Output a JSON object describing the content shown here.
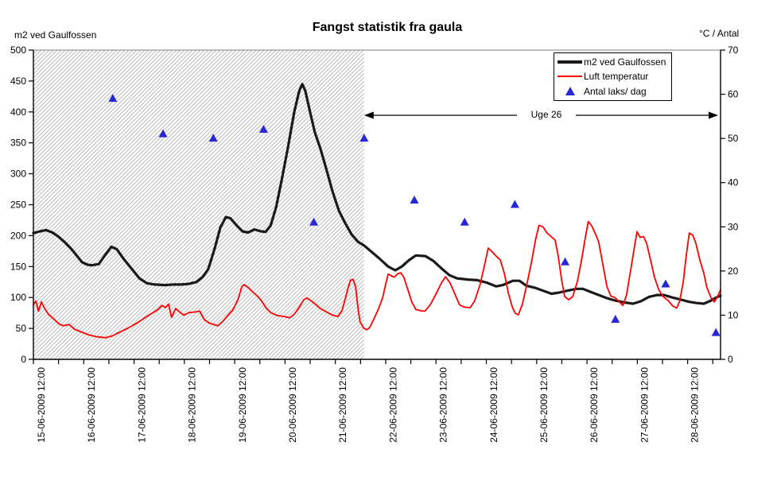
{
  "title": "Fangst statistik fra gaula",
  "left_axis": {
    "title": "m2 ved Gaulfossen",
    "min": 0,
    "max": 500,
    "ticks": [
      "0",
      "50",
      "100",
      "150",
      "200",
      "250",
      "300",
      "350",
      "400",
      "450",
      "500"
    ]
  },
  "right_axis": {
    "title": "°C / Antal",
    "min": 0,
    "max": 70,
    "ticks": [
      "0",
      "10",
      "20",
      "30",
      "40",
      "50",
      "60",
      "70"
    ]
  },
  "x_axis": {
    "labels": [
      "15-06-2009 12:00",
      "16-06-2009 12:00",
      "17-06-2009 12:00",
      "18-06-2009 12:00",
      "19-06-2009 12:00",
      "20-06-2009 12:00",
      "21-06-2009 12:00",
      "22-06-2009 12:00",
      "23-06-2009 12:00",
      "24-06-2009 12:00",
      "25-06-2009 12:00",
      "26-06-2009 12:00",
      "27-06-2009 12:00",
      "28-06-2009 12:00"
    ]
  },
  "legend": {
    "items": [
      {
        "label": "m2 ved Gaulfossen",
        "type": "line-thick",
        "color": "#1a1a1a"
      },
      {
        "label": "Luft temperatur",
        "type": "line",
        "color": "#ff0000"
      },
      {
        "label": "Antal laks/ dag",
        "type": "triangle",
        "color": "#2828d2"
      }
    ]
  },
  "annotation": {
    "label": "Uge 26",
    "spans_days": [
      6.5,
      13.59
    ]
  },
  "shaded_region": {
    "from_day": -0.08,
    "to_day": 6.5,
    "hatch_color": "#b9b9b9"
  },
  "chart_data": {
    "type": "line",
    "title": "Fangst statistik fra gaula",
    "x_unit": "days, 0 = 15-06-2009 12:00 (axis category labels at integer days)",
    "x_range": [
      -0.08,
      13.59
    ],
    "left_ylim": [
      0,
      500
    ],
    "right_ylim": [
      0,
      70
    ],
    "grid": false,
    "legend_position": "top-right-inside",
    "series": [
      {
        "name": "m2 ved Gaulfossen",
        "axis": "left",
        "type": "line",
        "color": "#1a1a1a",
        "points": [
          [
            -0.08,
            204
          ],
          [
            0.05,
            207
          ],
          [
            0.17,
            209
          ],
          [
            0.3,
            205
          ],
          [
            0.41,
            199
          ],
          [
            0.55,
            189
          ],
          [
            0.68,
            178
          ],
          [
            0.8,
            166
          ],
          [
            0.89,
            157
          ],
          [
            1.0,
            153
          ],
          [
            1.08,
            152
          ],
          [
            1.22,
            154
          ],
          [
            1.36,
            170
          ],
          [
            1.47,
            182
          ],
          [
            1.58,
            178
          ],
          [
            1.71,
            163
          ],
          [
            1.87,
            147
          ],
          [
            2.03,
            131
          ],
          [
            2.18,
            123
          ],
          [
            2.34,
            121
          ],
          [
            2.53,
            120
          ],
          [
            2.71,
            121
          ],
          [
            2.86,
            121
          ],
          [
            3.01,
            122
          ],
          [
            3.16,
            125
          ],
          [
            3.29,
            133
          ],
          [
            3.4,
            146
          ],
          [
            3.53,
            180
          ],
          [
            3.64,
            213
          ],
          [
            3.75,
            230
          ],
          [
            3.84,
            228
          ],
          [
            3.96,
            217
          ],
          [
            4.08,
            207
          ],
          [
            4.19,
            205
          ],
          [
            4.32,
            210
          ],
          [
            4.45,
            207
          ],
          [
            4.54,
            206
          ],
          [
            4.64,
            216
          ],
          [
            4.75,
            246
          ],
          [
            4.86,
            290
          ],
          [
            4.98,
            340
          ],
          [
            5.11,
            400
          ],
          [
            5.21,
            434
          ],
          [
            5.27,
            445
          ],
          [
            5.33,
            434
          ],
          [
            5.43,
            398
          ],
          [
            5.52,
            367
          ],
          [
            5.63,
            341
          ],
          [
            5.74,
            310
          ],
          [
            5.87,
            272
          ],
          [
            6.0,
            240
          ],
          [
            6.12,
            221
          ],
          [
            6.25,
            202
          ],
          [
            6.38,
            190
          ],
          [
            6.5,
            184
          ],
          [
            6.66,
            173
          ],
          [
            6.82,
            162
          ],
          [
            6.98,
            150
          ],
          [
            7.12,
            144
          ],
          [
            7.25,
            150
          ],
          [
            7.39,
            160
          ],
          [
            7.53,
            168
          ],
          [
            7.72,
            167
          ],
          [
            7.88,
            159
          ],
          [
            8.04,
            147
          ],
          [
            8.2,
            136
          ],
          [
            8.35,
            131
          ],
          [
            8.56,
            129
          ],
          [
            8.75,
            128
          ],
          [
            8.94,
            124
          ],
          [
            9.13,
            118
          ],
          [
            9.26,
            120
          ],
          [
            9.46,
            127
          ],
          [
            9.59,
            127
          ],
          [
            9.73,
            119
          ],
          [
            9.89,
            116
          ],
          [
            10.06,
            111
          ],
          [
            10.23,
            106
          ],
          [
            10.38,
            108
          ],
          [
            10.55,
            111
          ],
          [
            10.73,
            114
          ],
          [
            10.85,
            114
          ],
          [
            11.01,
            109
          ],
          [
            11.17,
            104
          ],
          [
            11.33,
            99
          ],
          [
            11.5,
            95
          ],
          [
            11.68,
            92
          ],
          [
            11.85,
            90
          ],
          [
            12.01,
            94
          ],
          [
            12.17,
            101
          ],
          [
            12.33,
            104
          ],
          [
            12.47,
            104
          ],
          [
            12.63,
            100
          ],
          [
            12.78,
            97
          ],
          [
            12.96,
            93
          ],
          [
            13.12,
            91
          ],
          [
            13.26,
            90
          ],
          [
            13.4,
            95
          ],
          [
            13.51,
            100
          ],
          [
            13.59,
            103
          ]
        ]
      },
      {
        "name": "Luft temperatur",
        "axis": "right",
        "type": "line",
        "color": "#ff0000",
        "points": [
          [
            -0.08,
            12.3
          ],
          [
            -0.03,
            13.2
          ],
          [
            0.02,
            10.9
          ],
          [
            0.08,
            13.0
          ],
          [
            0.14,
            11.6
          ],
          [
            0.22,
            10.2
          ],
          [
            0.32,
            9.2
          ],
          [
            0.43,
            8.0
          ],
          [
            0.52,
            7.6
          ],
          [
            0.63,
            7.9
          ],
          [
            0.74,
            6.8
          ],
          [
            0.87,
            6.2
          ],
          [
            1.03,
            5.5
          ],
          [
            1.19,
            5.1
          ],
          [
            1.36,
            4.9
          ],
          [
            1.49,
            5.3
          ],
          [
            1.63,
            6.1
          ],
          [
            1.79,
            7.0
          ],
          [
            1.95,
            8.0
          ],
          [
            2.1,
            9.1
          ],
          [
            2.26,
            10.3
          ],
          [
            2.39,
            11.2
          ],
          [
            2.48,
            12.2
          ],
          [
            2.55,
            11.7
          ],
          [
            2.61,
            12.5
          ],
          [
            2.67,
            9.5
          ],
          [
            2.75,
            11.5
          ],
          [
            2.83,
            10.7
          ],
          [
            2.91,
            10.0
          ],
          [
            3.02,
            10.6
          ],
          [
            3.13,
            10.7
          ],
          [
            3.23,
            10.9
          ],
          [
            3.32,
            9.0
          ],
          [
            3.42,
            8.2
          ],
          [
            3.51,
            7.9
          ],
          [
            3.59,
            7.6
          ],
          [
            3.69,
            8.6
          ],
          [
            3.8,
            10.1
          ],
          [
            3.89,
            11.2
          ],
          [
            3.99,
            13.5
          ],
          [
            4.07,
            16.5
          ],
          [
            4.11,
            16.9
          ],
          [
            4.19,
            16.3
          ],
          [
            4.29,
            15.2
          ],
          [
            4.38,
            14.3
          ],
          [
            4.46,
            13.2
          ],
          [
            4.56,
            11.5
          ],
          [
            4.65,
            10.5
          ],
          [
            4.78,
            9.9
          ],
          [
            4.91,
            9.7
          ],
          [
            5.02,
            9.4
          ],
          [
            5.11,
            10.2
          ],
          [
            5.21,
            11.8
          ],
          [
            5.3,
            13.5
          ],
          [
            5.36,
            13.9
          ],
          [
            5.44,
            13.3
          ],
          [
            5.54,
            12.4
          ],
          [
            5.63,
            11.5
          ],
          [
            5.74,
            10.8
          ],
          [
            5.87,
            10.0
          ],
          [
            5.98,
            9.7
          ],
          [
            6.06,
            11.0
          ],
          [
            6.12,
            13.5
          ],
          [
            6.19,
            16.5
          ],
          [
            6.23,
            17.9
          ],
          [
            6.28,
            18.1
          ],
          [
            6.33,
            16.5
          ],
          [
            6.38,
            11.5
          ],
          [
            6.42,
            8.5
          ],
          [
            6.49,
            7.1
          ],
          [
            6.55,
            6.7
          ],
          [
            6.61,
            7.2
          ],
          [
            6.69,
            9.0
          ],
          [
            6.79,
            11.5
          ],
          [
            6.87,
            14.0
          ],
          [
            6.93,
            17.0
          ],
          [
            6.98,
            19.3
          ],
          [
            7.04,
            18.9
          ],
          [
            7.1,
            18.6
          ],
          [
            7.17,
            19.4
          ],
          [
            7.23,
            19.6
          ],
          [
            7.29,
            18.6
          ],
          [
            7.37,
            15.8
          ],
          [
            7.45,
            13.0
          ],
          [
            7.53,
            11.3
          ],
          [
            7.63,
            11.0
          ],
          [
            7.71,
            10.9
          ],
          [
            7.82,
            12.4
          ],
          [
            7.93,
            14.8
          ],
          [
            8.04,
            17.3
          ],
          [
            8.12,
            18.7
          ],
          [
            8.21,
            17.3
          ],
          [
            8.31,
            14.7
          ],
          [
            8.4,
            12.3
          ],
          [
            8.5,
            11.8
          ],
          [
            8.61,
            11.7
          ],
          [
            8.7,
            13.2
          ],
          [
            8.81,
            17.0
          ],
          [
            8.91,
            22.0
          ],
          [
            8.97,
            25.2
          ],
          [
            9.05,
            24.3
          ],
          [
            9.15,
            23.1
          ],
          [
            9.21,
            22.5
          ],
          [
            9.29,
            19.5
          ],
          [
            9.37,
            15.0
          ],
          [
            9.45,
            11.8
          ],
          [
            9.51,
            10.4
          ],
          [
            9.57,
            10.1
          ],
          [
            9.65,
            12.5
          ],
          [
            9.73,
            16.5
          ],
          [
            9.83,
            22.0
          ],
          [
            9.91,
            27.0
          ],
          [
            9.98,
            30.3
          ],
          [
            10.06,
            30.0
          ],
          [
            10.14,
            28.6
          ],
          [
            10.22,
            27.8
          ],
          [
            10.3,
            27.0
          ],
          [
            10.36,
            23.5
          ],
          [
            10.43,
            18.0
          ],
          [
            10.49,
            14.2
          ],
          [
            10.57,
            13.5
          ],
          [
            10.65,
            14.2
          ],
          [
            10.74,
            17.5
          ],
          [
            10.82,
            22.0
          ],
          [
            10.9,
            27.5
          ],
          [
            10.96,
            31.2
          ],
          [
            11.03,
            30.2
          ],
          [
            11.11,
            28.2
          ],
          [
            11.17,
            26.5
          ],
          [
            11.25,
            21.5
          ],
          [
            11.33,
            16.5
          ],
          [
            11.41,
            14.3
          ],
          [
            11.49,
            14.0
          ],
          [
            11.57,
            13.1
          ],
          [
            11.65,
            12.2
          ],
          [
            11.72,
            14.5
          ],
          [
            11.8,
            20.0
          ],
          [
            11.88,
            25.5
          ],
          [
            11.93,
            28.9
          ],
          [
            11.99,
            27.6
          ],
          [
            12.06,
            27.8
          ],
          [
            12.12,
            26.3
          ],
          [
            12.2,
            22.5
          ],
          [
            12.28,
            18.5
          ],
          [
            12.36,
            15.8
          ],
          [
            12.45,
            14.2
          ],
          [
            12.55,
            13.3
          ],
          [
            12.64,
            12.1
          ],
          [
            12.72,
            11.6
          ],
          [
            12.78,
            13.2
          ],
          [
            12.85,
            17.5
          ],
          [
            12.91,
            23.5
          ],
          [
            12.97,
            28.6
          ],
          [
            13.04,
            28.1
          ],
          [
            13.1,
            26.3
          ],
          [
            13.18,
            22.5
          ],
          [
            13.26,
            19.5
          ],
          [
            13.32,
            16.3
          ],
          [
            13.4,
            14.0
          ],
          [
            13.47,
            13.0
          ],
          [
            13.53,
            14.2
          ],
          [
            13.59,
            15.7
          ]
        ]
      },
      {
        "name": "Antal laks/ dag",
        "axis": "right",
        "type": "scatter",
        "marker": "triangle",
        "color": "#2828d2",
        "points": [
          [
            1.5,
            59
          ],
          [
            2.5,
            51
          ],
          [
            3.5,
            50
          ],
          [
            4.5,
            52
          ],
          [
            5.5,
            31
          ],
          [
            6.5,
            50
          ],
          [
            7.5,
            36
          ],
          [
            8.5,
            31
          ],
          [
            9.5,
            35
          ],
          [
            10.5,
            22
          ],
          [
            11.5,
            9
          ],
          [
            12.5,
            17
          ],
          [
            13.5,
            6
          ]
        ]
      }
    ]
  }
}
